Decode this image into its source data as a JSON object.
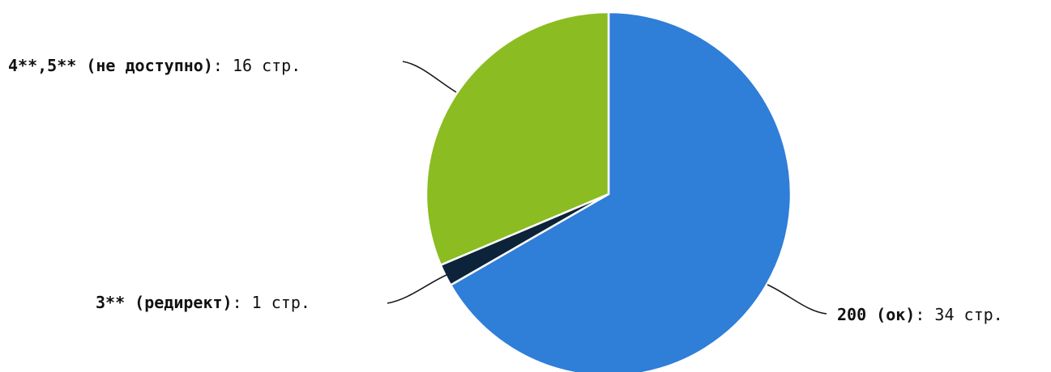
{
  "chart_data": {
    "type": "pie",
    "unit": "стр.",
    "start_angle": "12 o'clock",
    "direction": "clockwise",
    "slices": [
      {
        "label": "200 (ок)",
        "value": 34,
        "color": "#2f7ed8"
      },
      {
        "label": "3** (редирект)",
        "value": 1,
        "color": "#0d233a"
      },
      {
        "label": "4**,5** (не доступно)",
        "value": 16,
        "color": "#8bbc21"
      }
    ]
  }
}
